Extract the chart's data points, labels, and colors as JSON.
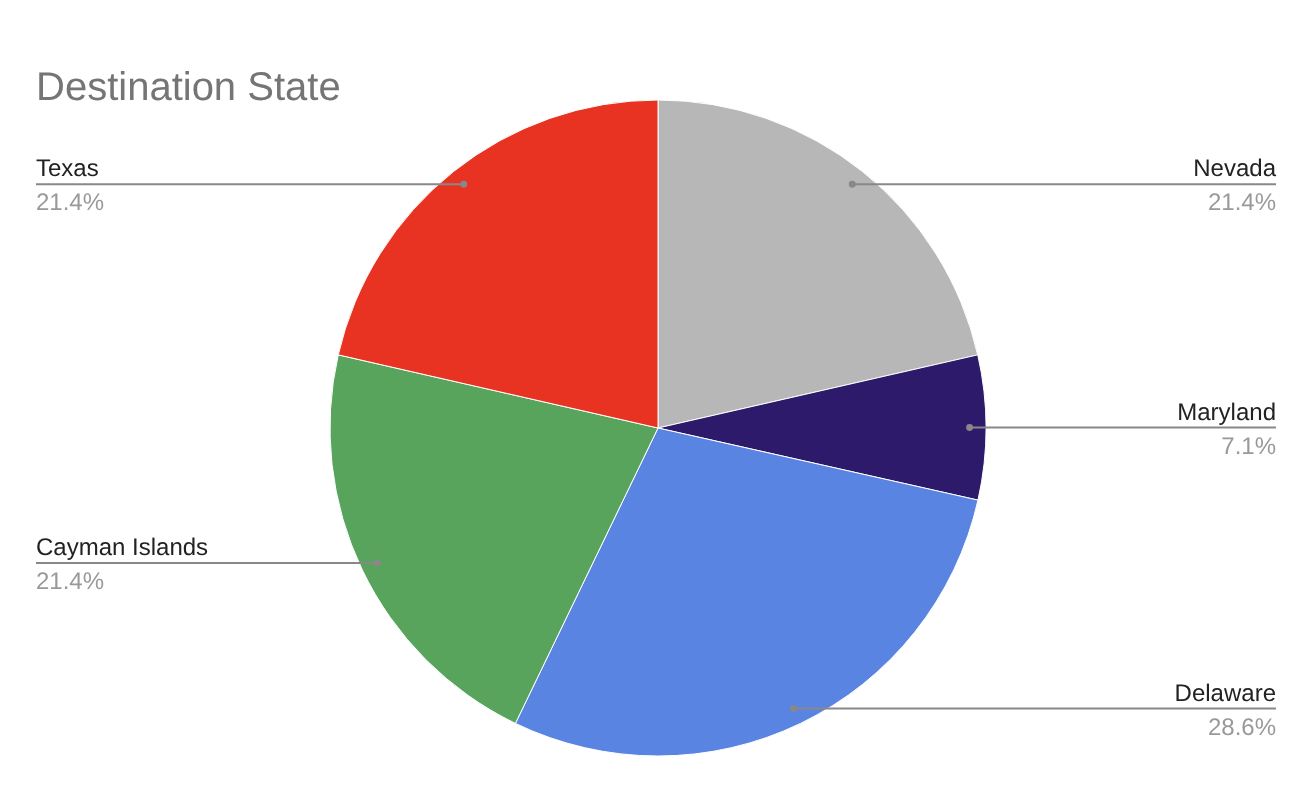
{
  "chart_data": {
    "type": "pie",
    "title": "Destination State",
    "categories": [
      "Nevada",
      "Maryland",
      "Delaware",
      "Cayman Islands",
      "Texas"
    ],
    "values": [
      21.4,
      7.1,
      28.6,
      21.4,
      21.4
    ],
    "value_labels": [
      "21.4%",
      "7.1%",
      "28.6%",
      "21.4%",
      "21.4%"
    ],
    "colors": [
      "#b7b7b7",
      "#2e1a6b",
      "#5a84e2",
      "#59a45c",
      "#e83323"
    ],
    "legend": false
  }
}
